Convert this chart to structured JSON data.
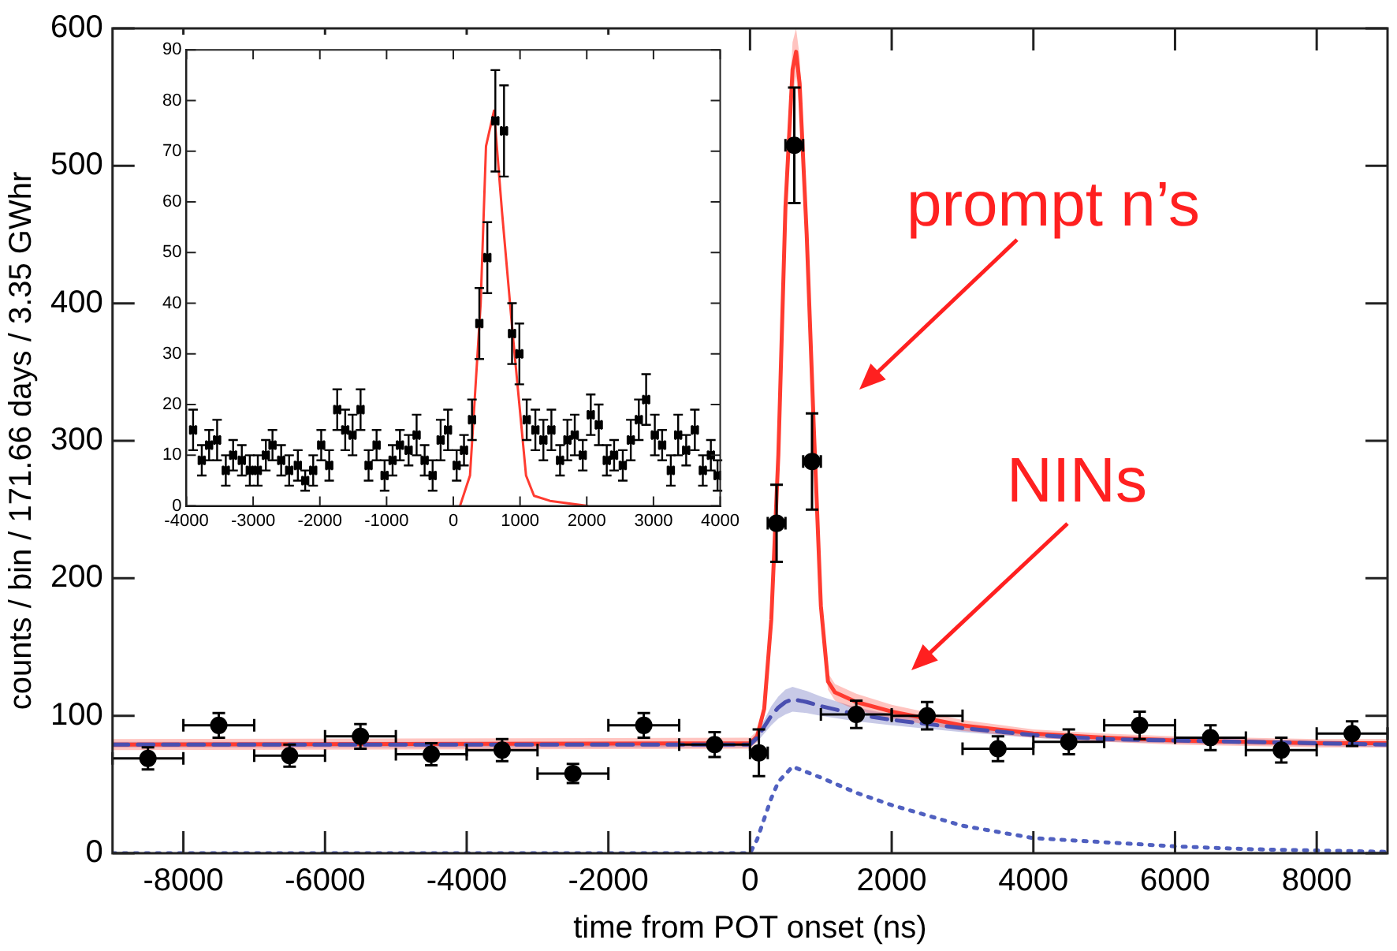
{
  "chart_data": [
    {
      "type": "scatter",
      "xlabel": "time from POT onset (ns)",
      "ylabel": "counts / bin / 171.66 days / 3.35 GWhr",
      "xlim": [
        -9000,
        9000
      ],
      "ylim": [
        0,
        600
      ],
      "xticks": [
        -8000,
        -6000,
        -4000,
        -2000,
        0,
        2000,
        4000,
        6000,
        8000
      ],
      "yticks": [
        0,
        100,
        200,
        300,
        400,
        500,
        600
      ],
      "grid": false,
      "legend": false,
      "marker": "circle",
      "annotations": [
        "prompt n’s",
        "NINs"
      ],
      "series": [
        {
          "type": "line",
          "color": "#ff3b30",
          "marker": "none",
          "line_style": "solid",
          "x": [
            -9000,
            0,
            100,
            200,
            300,
            400,
            500,
            600,
            650,
            700,
            800,
            900,
            1000,
            1100,
            1200,
            1500,
            2000,
            3000,
            4000,
            5000,
            6000,
            7000,
            8000,
            9000
          ],
          "values": [
            79,
            80,
            85,
            105,
            170,
            290,
            470,
            570,
            583,
            560,
            450,
            310,
            180,
            125,
            117,
            110,
            103,
            93,
            87,
            84,
            82,
            81,
            80,
            80
          ],
          "lower": [
            75,
            76,
            81,
            100,
            160,
            275,
            450,
            550,
            565,
            540,
            430,
            295,
            170,
            119,
            111,
            104,
            98,
            89,
            84,
            81,
            79,
            78,
            77,
            77
          ],
          "upper": [
            83,
            84,
            89,
            110,
            180,
            305,
            490,
            590,
            600,
            580,
            470,
            325,
            190,
            131,
            123,
            116,
            108,
            97,
            90,
            87,
            85,
            84,
            83,
            83
          ]
        },
        {
          "type": "line",
          "color": "#4a4fb0",
          "marker": "none",
          "line_style": "dashed",
          "x": [
            -9000,
            0,
            100,
            200,
            300,
            400,
            500,
            600,
            800,
            1000,
            1500,
            2000,
            3000,
            4000,
            5000,
            6000,
            7000,
            8000,
            9000
          ],
          "values": [
            79,
            79,
            84,
            92,
            100,
            106,
            110,
            112,
            110,
            107,
            101,
            97,
            91,
            86,
            83,
            82,
            81,
            80,
            79
          ],
          "lower": [
            77,
            77,
            81,
            87,
            93,
            98,
            101,
            103,
            102,
            100,
            96,
            93,
            88,
            84,
            81,
            80,
            79,
            78,
            77
          ],
          "upper": [
            81,
            81,
            88,
            97,
            107,
            114,
            119,
            121,
            118,
            114,
            106,
            101,
            94,
            88,
            85,
            84,
            83,
            82,
            81
          ]
        },
        {
          "type": "line",
          "color": "#5060c0",
          "marker": "none",
          "line_style": "dotted",
          "x": [
            -9000,
            0,
            100,
            200,
            300,
            400,
            600,
            1000,
            1500,
            2000,
            3000,
            4000,
            5000,
            6000,
            7000,
            8000,
            9000
          ],
          "values": [
            0,
            0,
            10,
            25,
            40,
            52,
            63,
            55,
            44,
            35,
            20,
            11,
            8,
            5,
            3,
            2,
            1
          ]
        },
        {
          "color": "#000000",
          "x": [
            -8500,
            -7500,
            -6500,
            -5500,
            -4500,
            -3500,
            -2500,
            -1500,
            -500,
            125,
            375,
            625,
            875,
            1500,
            2500,
            3500,
            4500,
            5500,
            6500,
            7500,
            8500
          ],
          "values": [
            69,
            93,
            71,
            85,
            72,
            75,
            58,
            93,
            79,
            73,
            240,
            515,
            285,
            101,
            100,
            76,
            81,
            93,
            84,
            75,
            87
          ],
          "errors": [
            8,
            9,
            8,
            9,
            8,
            8,
            7,
            9,
            9,
            17,
            28,
            42,
            35,
            10,
            10,
            9,
            9,
            10,
            9,
            9,
            9
          ],
          "xerrors": [
            500,
            500,
            500,
            500,
            500,
            500,
            500,
            500,
            500,
            125,
            125,
            125,
            125,
            500,
            500,
            500,
            500,
            500,
            500,
            500,
            500
          ]
        }
      ]
    },
    {
      "type": "scatter",
      "xlim": [
        -4000,
        4000
      ],
      "ylim": [
        0,
        90
      ],
      "xticks": [
        -4000,
        -3000,
        -2000,
        -1000,
        0,
        1000,
        2000,
        3000,
        4000
      ],
      "yticks": [
        0,
        10,
        20,
        30,
        40,
        50,
        60,
        70,
        80,
        90
      ],
      "grid": false,
      "legend": false,
      "marker": "square",
      "series": [
        {
          "type": "line",
          "color": "#ff3b30",
          "marker": "none",
          "line_style": "solid",
          "x": [
            100,
            250,
            410,
            490,
            610,
            730,
            890,
            1090,
            1210,
            1450,
            2010
          ],
          "values": [
            0,
            6,
            40,
            71,
            78,
            58,
            34,
            6,
            2,
            1,
            0
          ]
        },
        {
          "color": "#000000",
          "x": [
            -3900,
            -3770,
            -3660,
            -3540,
            -3410,
            -3300,
            -3170,
            -3050,
            -2930,
            -2810,
            -2710,
            -2580,
            -2460,
            -2330,
            -2220,
            -2100,
            -1980,
            -1860,
            -1740,
            -1620,
            -1510,
            -1390,
            -1270,
            -1150,
            -1030,
            -910,
            -800,
            -670,
            -550,
            -430,
            -310,
            -190,
            -80,
            50,
            160,
            280,
            390,
            510,
            630,
            760,
            880,
            990,
            1100,
            1230,
            1350,
            1470,
            1600,
            1710,
            1820,
            1940,
            2060,
            2180,
            2300,
            2410,
            2540,
            2660,
            2780,
            2890,
            3020,
            3130,
            3260,
            3370,
            3490,
            3620,
            3740,
            3860,
            3960
          ],
          "values": [
            15,
            9,
            12,
            13,
            7,
            10,
            9,
            7,
            7,
            10,
            12,
            9,
            7,
            8,
            5,
            7,
            12,
            8,
            19,
            15,
            14,
            19,
            8,
            12,
            6,
            9,
            12,
            11,
            14,
            9,
            6,
            13,
            15,
            8,
            11,
            17,
            36,
            49,
            76,
            74,
            34,
            30,
            17,
            15,
            13,
            15,
            9,
            13,
            14,
            10,
            18,
            16,
            9,
            10,
            8,
            13,
            17,
            21,
            14,
            12,
            7,
            14,
            11,
            15,
            7,
            10,
            6
          ],
          "errors": [
            4,
            3,
            3,
            4,
            3,
            3,
            3,
            3,
            3,
            3,
            3,
            3,
            3,
            3,
            2,
            3,
            3,
            3,
            4,
            4,
            4,
            4,
            3,
            3,
            3,
            3,
            3,
            3,
            4,
            3,
            3,
            4,
            4,
            3,
            3,
            4,
            7,
            7,
            10,
            9,
            6,
            6,
            4,
            4,
            4,
            4,
            3,
            4,
            4,
            3,
            4,
            4,
            3,
            3,
            3,
            4,
            4,
            5,
            4,
            3,
            3,
            4,
            3,
            4,
            3,
            3,
            3
          ],
          "xerrors": [
            40,
            40,
            40,
            40,
            40,
            40,
            40,
            40,
            40,
            40,
            40,
            40,
            40,
            40,
            40,
            40,
            40,
            40,
            40,
            40,
            40,
            40,
            40,
            40,
            40,
            40,
            40,
            40,
            40,
            40,
            40,
            40,
            40,
            40,
            40,
            40,
            40,
            40,
            40,
            40,
            40,
            40,
            40,
            40,
            40,
            40,
            40,
            40,
            40,
            40,
            40,
            40,
            40,
            40,
            40,
            40,
            40,
            40,
            40,
            40,
            40,
            40,
            40,
            40,
            40,
            40,
            40
          ]
        }
      ]
    }
  ]
}
